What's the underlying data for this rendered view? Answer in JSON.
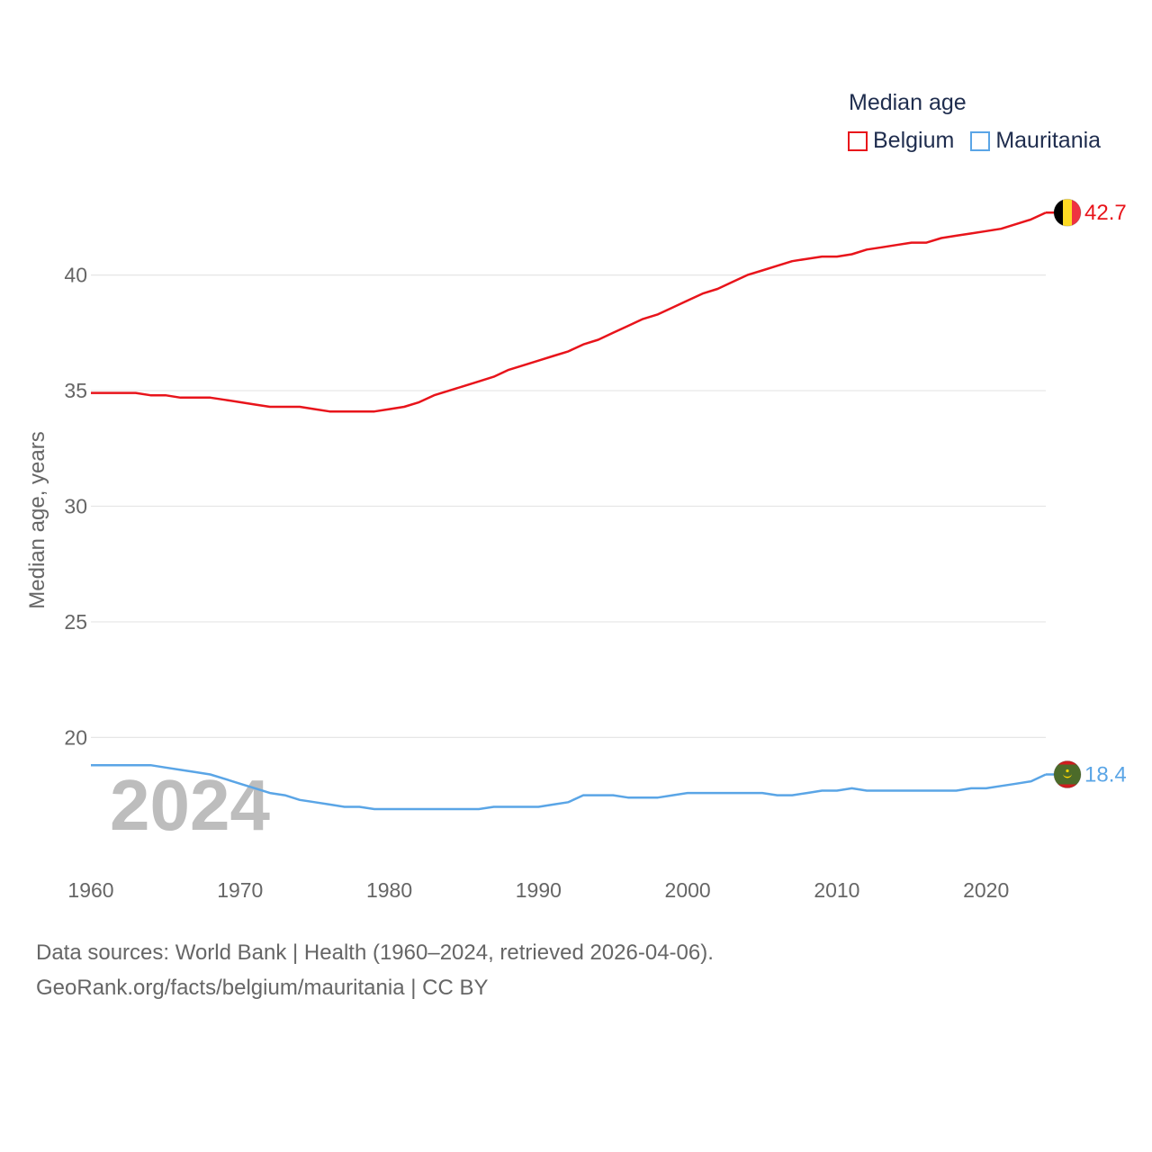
{
  "chart_data": {
    "type": "line",
    "title": "Median age",
    "ylabel": "Median age, years",
    "xlabel": "",
    "ylim": [
      15.5,
      44.5
    ],
    "xlim": [
      1960,
      2024
    ],
    "yticks": [
      20,
      25,
      30,
      35,
      40
    ],
    "xticks": [
      1960,
      1970,
      1980,
      1990,
      2000,
      2010,
      2020
    ],
    "grid": true,
    "legend_position": "top-right",
    "year_label": "2024",
    "x": [
      1960,
      1961,
      1962,
      1963,
      1964,
      1965,
      1966,
      1967,
      1968,
      1969,
      1970,
      1971,
      1972,
      1973,
      1974,
      1975,
      1976,
      1977,
      1978,
      1979,
      1980,
      1981,
      1982,
      1983,
      1984,
      1985,
      1986,
      1987,
      1988,
      1989,
      1990,
      1991,
      1992,
      1993,
      1994,
      1995,
      1996,
      1997,
      1998,
      1999,
      2000,
      2001,
      2002,
      2003,
      2004,
      2005,
      2006,
      2007,
      2008,
      2009,
      2010,
      2011,
      2012,
      2013,
      2014,
      2015,
      2016,
      2017,
      2018,
      2019,
      2020,
      2021,
      2022,
      2023,
      2024
    ],
    "series": [
      {
        "name": "Belgium",
        "color": "#e8141b",
        "end_label": "42.7",
        "flag": "belgium-flag-icon",
        "values": [
          34.9,
          34.9,
          34.9,
          34.9,
          34.8,
          34.8,
          34.7,
          34.7,
          34.7,
          34.6,
          34.5,
          34.4,
          34.3,
          34.3,
          34.3,
          34.2,
          34.1,
          34.1,
          34.1,
          34.1,
          34.2,
          34.3,
          34.5,
          34.8,
          35.0,
          35.2,
          35.4,
          35.6,
          35.9,
          36.1,
          36.3,
          36.5,
          36.7,
          37.0,
          37.2,
          37.5,
          37.8,
          38.1,
          38.3,
          38.6,
          38.9,
          39.2,
          39.4,
          39.7,
          40.0,
          40.2,
          40.4,
          40.6,
          40.7,
          40.8,
          40.8,
          40.9,
          41.1,
          41.2,
          41.3,
          41.4,
          41.4,
          41.6,
          41.7,
          41.8,
          41.9,
          42.0,
          42.2,
          42.4,
          42.7
        ]
      },
      {
        "name": "Mauritania",
        "color": "#5aa5e6",
        "end_label": "18.4",
        "flag": "mauritania-flag-icon",
        "values": [
          18.8,
          18.8,
          18.8,
          18.8,
          18.8,
          18.7,
          18.6,
          18.5,
          18.4,
          18.2,
          18.0,
          17.8,
          17.6,
          17.5,
          17.3,
          17.2,
          17.1,
          17.0,
          17.0,
          16.9,
          16.9,
          16.9,
          16.9,
          16.9,
          16.9,
          16.9,
          16.9,
          17.0,
          17.0,
          17.0,
          17.0,
          17.1,
          17.2,
          17.5,
          17.5,
          17.5,
          17.4,
          17.4,
          17.4,
          17.5,
          17.6,
          17.6,
          17.6,
          17.6,
          17.6,
          17.6,
          17.5,
          17.5,
          17.6,
          17.7,
          17.7,
          17.8,
          17.7,
          17.7,
          17.7,
          17.7,
          17.7,
          17.7,
          17.7,
          17.8,
          17.8,
          17.9,
          18.0,
          18.1,
          18.4
        ]
      }
    ]
  },
  "source": {
    "line1": "Data sources: World Bank | Health (1960–2024, retrieved 2026-04-06).",
    "line2": "GeoRank.org/facts/belgium/mauritania | CC BY"
  }
}
